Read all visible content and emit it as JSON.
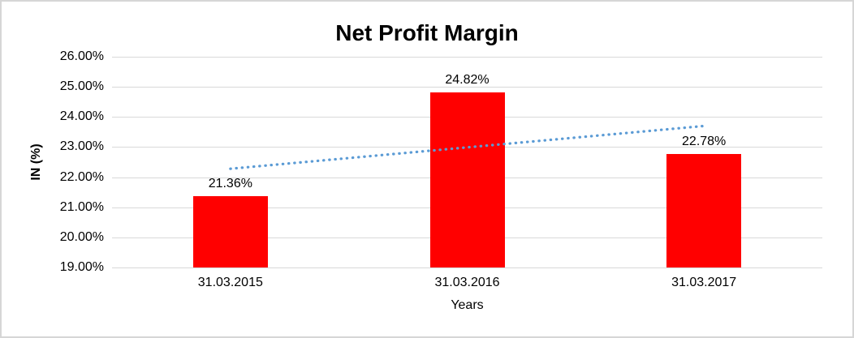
{
  "chart_data": {
    "type": "bar",
    "title": "Net Profit Margin",
    "xlabel": "Years",
    "ylabel": "IN (%)",
    "categories": [
      "31.03.2015",
      "31.03.2016",
      "31.03.2017"
    ],
    "values": [
      21.36,
      24.82,
      22.78
    ],
    "data_labels": [
      "21.36%",
      "24.82%",
      "22.78%"
    ],
    "y_ticks": [
      {
        "value": 26,
        "label": "26.00%"
      },
      {
        "value": 25,
        "label": "25.00%"
      },
      {
        "value": 24,
        "label": "24.00%"
      },
      {
        "value": 23,
        "label": "23.00%"
      },
      {
        "value": 22,
        "label": "22.00%"
      },
      {
        "value": 21,
        "label": "21.00%"
      },
      {
        "value": 20,
        "label": "20.00%"
      },
      {
        "value": 19,
        "label": "19.00%"
      }
    ],
    "ylim": [
      19,
      26
    ],
    "grid": true,
    "legend": "none",
    "bar_color": "#ff0000",
    "gridline_color": "#d9d9d9",
    "trendline": {
      "style": "dotted",
      "color": "#5b9bd5",
      "start_value": 22.28,
      "end_value": 23.7
    }
  }
}
